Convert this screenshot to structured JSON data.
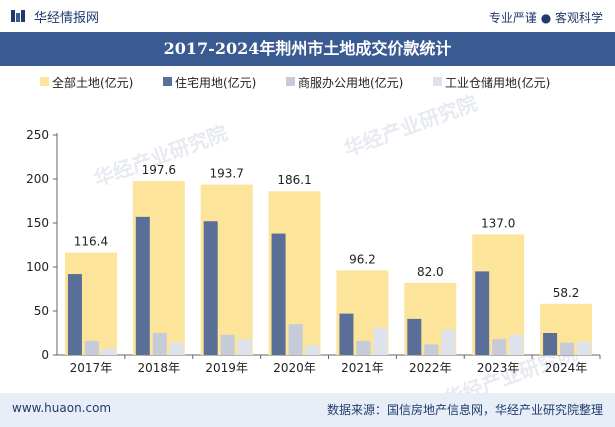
{
  "header": {
    "logo_text": "华经情报网",
    "slogan": "专业严谨 ● 客观科学"
  },
  "watermark": "华经产业研究院",
  "chart_data": {
    "type": "bar",
    "title": "2017-2024年荆州市土地成交价款统计",
    "categories": [
      "2017年",
      "2018年",
      "2019年",
      "2020年",
      "2021年",
      "2022年",
      "2023年",
      "2024年"
    ],
    "ylim": [
      0,
      250
    ],
    "yticks": [
      0,
      50,
      100,
      150,
      200,
      250
    ],
    "series": [
      {
        "name": "全部土地(亿元)",
        "color": "#fce49a",
        "values": [
          116.4,
          197.6,
          193.7,
          186.1,
          96.2,
          82.0,
          137.0,
          58.2
        ],
        "labels": [
          "116.4",
          "197.6",
          "193.7",
          "186.1",
          "96.2",
          "82.0",
          "137.0",
          "58.2"
        ]
      },
      {
        "name": "住宅用地(亿元)",
        "color": "#5a6f98",
        "values": [
          92,
          157,
          152,
          138,
          47,
          41,
          95,
          25
        ]
      },
      {
        "name": "商服办公用地(亿元)",
        "color": "#c5cbd8",
        "values": [
          16,
          25,
          23,
          35,
          16,
          12,
          18,
          14
        ]
      },
      {
        "name": "工业仓储用地(亿元)",
        "color": "#dde2ec",
        "values": [
          7,
          14,
          18,
          11,
          31,
          29,
          23,
          15
        ]
      }
    ],
    "grid": false,
    "legend": "top"
  },
  "footer": {
    "website": "www.huaon.com",
    "source": "数据来源：国信房地产信息网，华经产业研究院整理"
  }
}
